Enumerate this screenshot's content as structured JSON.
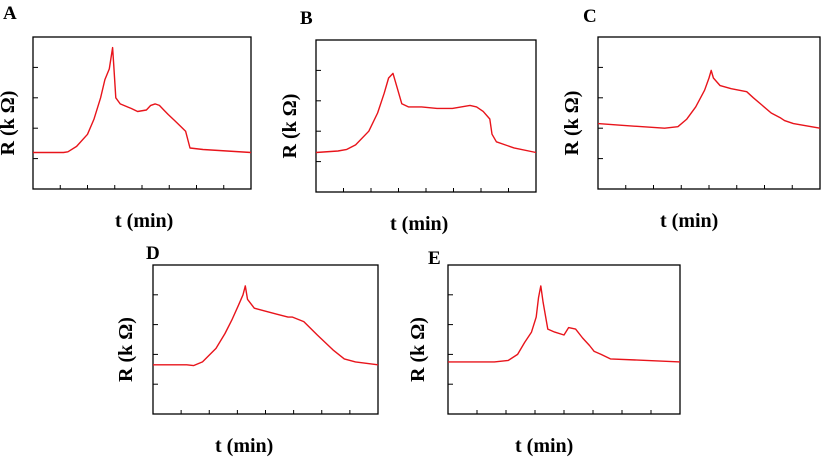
{
  "figure": {
    "background": "#ffffff",
    "trace_color": "#e8141b"
  },
  "chart_data": [
    {
      "type": "line",
      "panel": "A",
      "xlabel": "t (min)",
      "ylabel": "R (k Ω)",
      "grid": false,
      "xlim": [
        0,
        100
      ],
      "ylim": [
        0,
        100
      ],
      "series": [
        {
          "x": [
            0,
            14,
            16,
            20,
            25,
            28,
            31,
            33,
            35,
            36.5,
            37,
            38,
            40,
            45,
            48,
            52,
            54,
            56,
            58,
            60,
            62,
            65,
            70,
            72,
            78,
            100
          ],
          "y": [
            24,
            24,
            24.5,
            28,
            36,
            46,
            60,
            72,
            79,
            93,
            82,
            60,
            56,
            53,
            51,
            52,
            55,
            56,
            55,
            52,
            49,
            45,
            38,
            27,
            26,
            24
          ]
        }
      ]
    },
    {
      "type": "line",
      "panel": "B",
      "xlabel": "t (min)",
      "ylabel": "R (k Ω)",
      "grid": false,
      "xlim": [
        0,
        100
      ],
      "ylim": [
        0,
        100
      ],
      "series": [
        {
          "x": [
            0,
            10,
            14,
            18,
            24,
            28,
            31,
            33,
            35,
            37,
            39,
            42,
            48,
            55,
            62,
            66,
            70,
            73,
            76,
            79,
            80,
            82,
            86,
            90,
            100
          ],
          "y": [
            26,
            27,
            28,
            31,
            40,
            52,
            65,
            75,
            78,
            68,
            58,
            56,
            56,
            55,
            55,
            56,
            57,
            56,
            53,
            48,
            38,
            33,
            31,
            29,
            26
          ]
        }
      ]
    },
    {
      "type": "line",
      "panel": "C",
      "xlabel": "t (min)",
      "ylabel": "R (k Ω)",
      "grid": false,
      "xlim": [
        0,
        100
      ],
      "ylim": [
        0,
        100
      ],
      "series": [
        {
          "x": [
            0,
            10,
            20,
            30,
            36,
            40,
            44,
            48,
            50,
            51,
            52,
            55,
            60,
            67,
            70,
            74,
            78,
            82,
            84,
            88,
            100
          ],
          "y": [
            43,
            42,
            41,
            40,
            41,
            46,
            54,
            65,
            73,
            78,
            73,
            68,
            66,
            64,
            60,
            55,
            50,
            47,
            45,
            43,
            40
          ]
        }
      ]
    },
    {
      "type": "line",
      "panel": "D",
      "xlabel": "t (min)",
      "ylabel": "R (k Ω)",
      "grid": false,
      "xlim": [
        0,
        100
      ],
      "ylim": [
        0,
        100
      ],
      "series": [
        {
          "x": [
            0,
            15,
            18,
            22,
            28,
            32,
            35,
            38,
            40,
            41,
            42,
            45,
            50,
            55,
            60,
            62,
            67,
            73,
            80,
            85,
            90,
            100
          ],
          "y": [
            33,
            33,
            32.5,
            35,
            44,
            54,
            63,
            73,
            80,
            86,
            77,
            71,
            69,
            67,
            65,
            65,
            62,
            53,
            43,
            37,
            35,
            33
          ]
        }
      ]
    },
    {
      "type": "line",
      "panel": "E",
      "xlabel": "t (min)",
      "ylabel": "R (k Ω)",
      "grid": false,
      "xlim": [
        0,
        100
      ],
      "ylim": [
        0,
        100
      ],
      "series": [
        {
          "x": [
            0,
            20,
            26,
            30,
            33,
            36,
            38,
            39,
            40,
            41,
            43,
            46,
            50,
            52,
            55,
            58,
            61,
            63,
            66,
            70,
            100
          ],
          "y": [
            35,
            35,
            36,
            40,
            48,
            55,
            65,
            78,
            86,
            75,
            57,
            55,
            53,
            58,
            57,
            51,
            46,
            42,
            40,
            37,
            35
          ]
        }
      ]
    }
  ]
}
